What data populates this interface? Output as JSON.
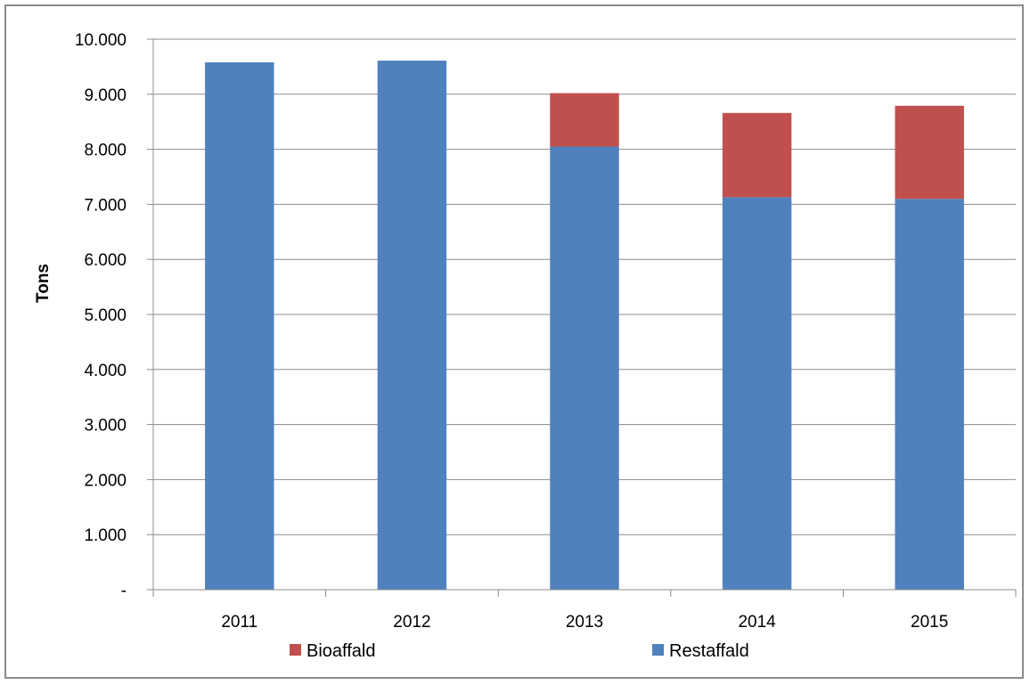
{
  "chart_data": {
    "type": "bar",
    "stacked": true,
    "categories": [
      "2011",
      "2012",
      "2013",
      "2014",
      "2015"
    ],
    "series": [
      {
        "name": "Restaffald",
        "color": "#4f81bd",
        "values": [
          9580,
          9610,
          8050,
          7130,
          7100
        ]
      },
      {
        "name": "Bioaffald",
        "color": "#c0504d",
        "values": [
          0,
          0,
          970,
          1530,
          1690
        ]
      }
    ],
    "ylabel": "Tons",
    "xlabel": "",
    "ylim": [
      0,
      10000
    ],
    "yticks": [
      0,
      1000,
      2000,
      3000,
      4000,
      5000,
      6000,
      7000,
      8000,
      9000,
      10000
    ],
    "ytick_labels": [
      "-",
      "1.000",
      "2.000",
      "3.000",
      "4.000",
      "5.000",
      "6.000",
      "7.000",
      "8.000",
      "9.000",
      "10.000"
    ],
    "grid": true,
    "legend": {
      "placement": "bottom",
      "entries": [
        {
          "name": "Bioaffald",
          "color": "#c0504d"
        },
        {
          "name": "Restaffald",
          "color": "#4f81bd"
        }
      ]
    }
  }
}
